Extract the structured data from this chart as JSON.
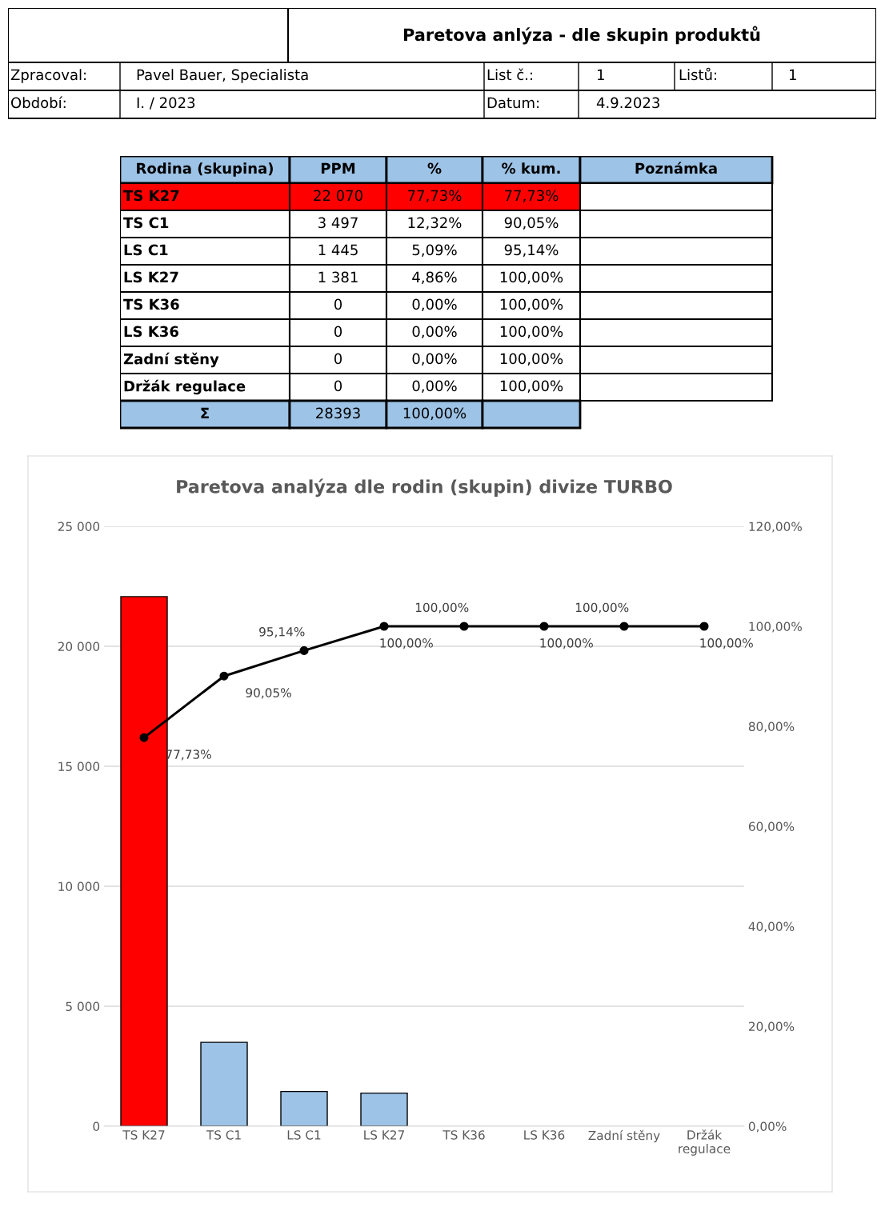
{
  "chart_data": [
    {
      "type": "other",
      "title": "Paretova anlýza - dle skupin produktů",
      "annotations": [
        "Zpracoval:",
        "Pavel Bauer, Specialista",
        "List č.:",
        "1",
        "Listů:",
        "1",
        "Období:",
        "I. / 2023",
        "Datum:",
        "4.9.2023"
      ]
    },
    {
      "type": "other",
      "annotations": [
        "Rodina (skupina)",
        "PPM",
        "%",
        "% kum.",
        "Poznámka",
        "TS K27",
        "22 070",
        "77,73%",
        "77,73%",
        "TS C1",
        "3 497",
        "12,32%",
        "90,05%",
        "LS C1",
        "1 445",
        "5,09%",
        "95,14%",
        "LS K27",
        "1 381",
        "4,86%",
        "100,00%",
        "TS K36",
        "0",
        "0,00%",
        "100,00%",
        "LS K36",
        "0",
        "0,00%",
        "100,00%",
        "Zadní stěny",
        "0",
        "0,00%",
        "100,00%",
        "Držák regulace",
        "0",
        "0,00%",
        "100,00%",
        "Σ",
        "28393",
        "100,00%"
      ]
    },
    {
      "type": "bar",
      "title": "Paretova analýza dle rodin (skupin) divize TURBO",
      "categories": [
        "TS K27",
        "TS C1",
        "LS C1",
        "LS K27",
        "TS K36",
        "LS K36",
        "Zadní stěny",
        "Držák\nregulace"
      ],
      "series": [
        {
          "type": "bar",
          "colors": [
            "#ff0000",
            "#9dc3e6",
            "#9dc3e6",
            "#9dc3e6",
            "#9dc3e6",
            "#9dc3e6",
            "#9dc3e6",
            "#9dc3e6"
          ],
          "values": [
            22070,
            3497,
            1445,
            1381,
            0,
            0,
            0,
            0
          ]
        },
        {
          "type": "line",
          "axis": "y2",
          "color": "#000000",
          "marker": "circle",
          "values": [
            77.73,
            90.05,
            95.14,
            100,
            100,
            100,
            100,
            100
          ],
          "value_labels": [
            "77,73%",
            "90,05%",
            "95,14%",
            "100,00%",
            "100,00%",
            "100,00%",
            "100,00%",
            "100,00%"
          ]
        }
      ],
      "ylim": [
        0,
        25000
      ],
      "yticks": [
        {
          "value": 0,
          "label": "0"
        },
        {
          "value": 5000,
          "label": "5 000"
        },
        {
          "value": 10000,
          "label": "10 000"
        },
        {
          "value": 15000,
          "label": "15 000"
        },
        {
          "value": 20000,
          "label": "20 000"
        },
        {
          "value": 25000,
          "label": "25 000"
        }
      ],
      "y2lim": [
        0,
        120
      ],
      "y2ticks": [
        {
          "value": 0,
          "label": "0,00%"
        },
        {
          "value": 20,
          "label": "20,00%"
        },
        {
          "value": 40,
          "label": "40,00%"
        },
        {
          "value": 60,
          "label": "60,00%"
        },
        {
          "value": 80,
          "label": "80,00%"
        },
        {
          "value": 100,
          "label": "100,00%"
        },
        {
          "value": 120,
          "label": "120,00%"
        }
      ],
      "grid": "y"
    }
  ]
}
